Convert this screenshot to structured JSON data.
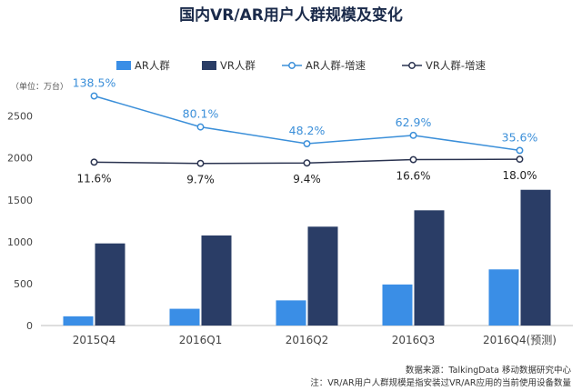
{
  "chart_data": {
    "type": "bar",
    "title": "国内VR/AR用户人群规模及变化",
    "unit_label": "（单位：万台）",
    "categories": [
      "2015Q4",
      "2016Q1",
      "2016Q2",
      "2016Q3",
      "2016Q4(预测)"
    ],
    "ylim": [
      0,
      2800
    ],
    "yticks": [
      0,
      500,
      1000,
      1500,
      2000,
      2500
    ],
    "grid": false,
    "legend_position": "top",
    "series": [
      {
        "name": "AR人群",
        "kind": "bar",
        "color": "#3a8ee6",
        "values": [
          110,
          200,
          300,
          490,
          670
        ]
      },
      {
        "name": "VR人群",
        "kind": "bar",
        "color": "#2a3d66",
        "values": [
          980,
          1075,
          1180,
          1375,
          1620
        ]
      },
      {
        "name": "AR人群-增速",
        "kind": "line",
        "color": "#3b8fd9",
        "values": [
          2740,
          2370,
          2170,
          2270,
          2090
        ],
        "labels": [
          "138.5%",
          "80.1%",
          "48.2%",
          "62.9%",
          "35.6%"
        ]
      },
      {
        "name": "VR人群-增速",
        "kind": "line",
        "color": "#2a3350",
        "values": [
          1950,
          1935,
          1940,
          1980,
          1985
        ],
        "labels": [
          "11.6%",
          "9.7%",
          "9.4%",
          "16.6%",
          "18.0%"
        ]
      }
    ]
  },
  "footer": {
    "source": "数据来源：TalkingData 移动数据研究中心",
    "note": "注：VR/AR用户人群规模是指安装过VR/AR应用的当前使用设备数量"
  }
}
